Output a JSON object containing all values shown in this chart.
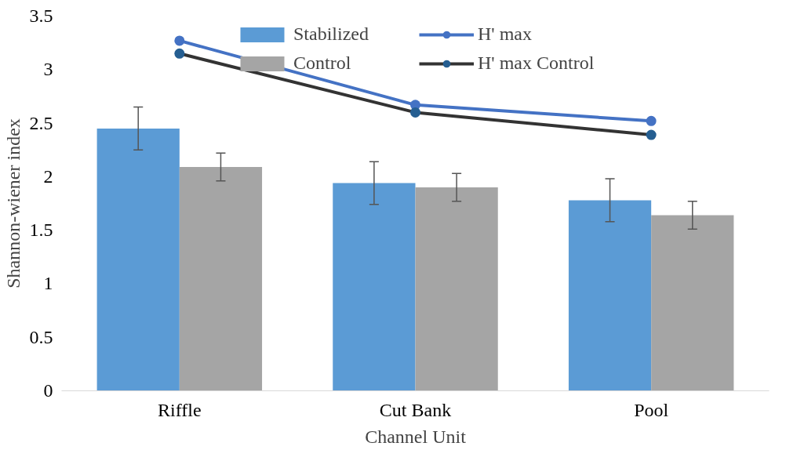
{
  "chart_data": {
    "type": "bar",
    "xlabel": "Channel Unit",
    "ylabel": "Shannon-wiener index",
    "categories": [
      "Riffle",
      "Cut Bank",
      "Pool"
    ],
    "series": [
      {
        "name": "Stabilized",
        "color": "#5b9bd5",
        "values": [
          2.45,
          1.94,
          1.78
        ],
        "errors": [
          0.2,
          0.2,
          0.2
        ]
      },
      {
        "name": "Control",
        "color": "#a5a5a5",
        "values": [
          2.09,
          1.9,
          1.64
        ],
        "errors": [
          0.13,
          0.13,
          0.13
        ]
      },
      {
        "name": "H' max",
        "type": "line",
        "color": "#4472c4",
        "values": [
          3.27,
          2.67,
          2.52
        ]
      },
      {
        "name": "H' max Control",
        "type": "line",
        "color": "#333333",
        "values": [
          3.15,
          2.6,
          2.39
        ]
      }
    ],
    "ylim": [
      0,
      3.5
    ],
    "yticks": [
      0,
      0.5,
      1,
      1.5,
      2,
      2.5,
      3,
      3.5
    ],
    "grid": false,
    "legend": "top",
    "marker": "circle",
    "line_style": "solid"
  }
}
